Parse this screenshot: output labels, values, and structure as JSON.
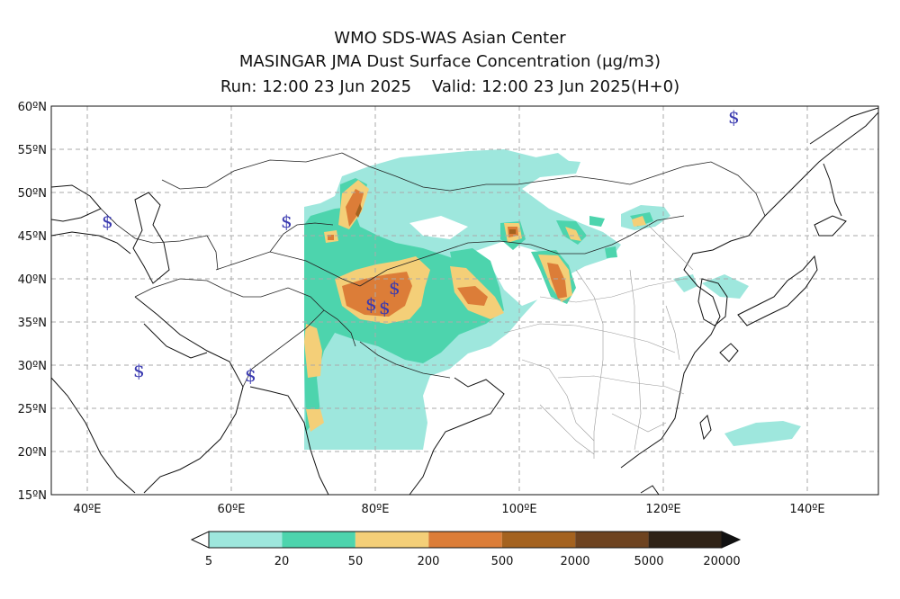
{
  "header": {
    "title": "WMO SDS-WAS Asian Center",
    "subtitle": "MASINGAR JMA Dust Surface Concentration (μg/m3)",
    "run_valid": "Run: 12:00 23 Jun 2025    Valid: 12:00 23 Jun 2025(H+0)"
  },
  "map": {
    "lon_range": [
      35,
      150
    ],
    "lat_range": [
      15,
      60
    ],
    "lat_labels": [
      "60ºN",
      "55ºN",
      "50ºN",
      "45ºN",
      "40ºN",
      "35ºN",
      "30ºN",
      "25ºN",
      "20ºN",
      "15ºN"
    ],
    "lon_labels": [
      "40ºE",
      "60ºE",
      "80ºE",
      "100ºE",
      "120ºE",
      "140ºE"
    ],
    "grid": "dashed",
    "station_symbol": "$",
    "station_symbol_color": "#3a3ab0"
  },
  "legend": {
    "ticks": [
      "5",
      "20",
      "50",
      "200",
      "500",
      "2000",
      "5000",
      "20000"
    ],
    "colors": [
      "#9ee7dd",
      "#4dd4ad",
      "#f4cf78",
      "#dc7d38",
      "#a4621f",
      "#6e4320",
      "#2f2216"
    ]
  }
}
